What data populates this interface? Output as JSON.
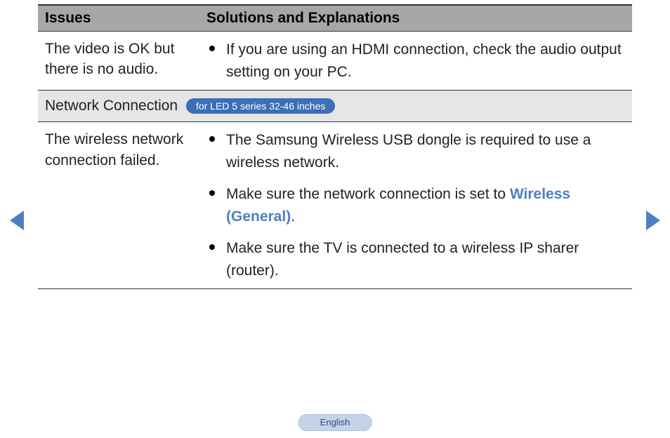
{
  "table": {
    "header": {
      "issues": "Issues",
      "solutions": "Solutions and Explanations"
    },
    "row1": {
      "issue": "The video is OK but there is no audio.",
      "sol1": "If you are using an HDMI connection, check the audio output setting on your PC."
    },
    "section": {
      "label": "Network Connection",
      "pill": "for LED 5 series 32-46 inches"
    },
    "row2": {
      "issue": "The wireless network connection failed.",
      "sol1": "The Samsung Wireless USB dongle is required to use a wireless network.",
      "sol2_pre": "Make sure the network connection is set to ",
      "sol2_hl": "Wireless (General)",
      "sol2_post": ".",
      "sol3": "Make sure the TV is connected to a wireless IP sharer (router)."
    }
  },
  "footer": {
    "language": "English"
  }
}
